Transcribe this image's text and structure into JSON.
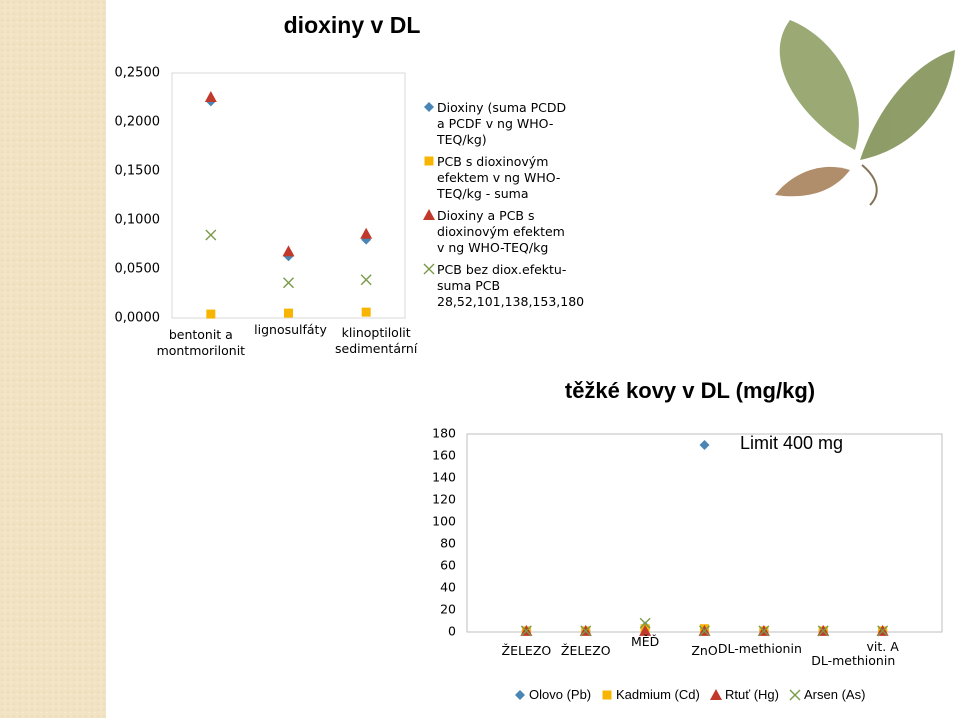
{
  "chart_data": [
    {
      "type": "scatter",
      "title": "dioxiny v DL",
      "categories": [
        "bentonit a montmorilonit",
        "lignosulfáty",
        "klinoptilolit sedimentární"
      ],
      "series": [
        {
          "name": "Dioxiny (suma PCDD a PCDF v ng WHO-TEQ/kg)",
          "color": "#4a86b5",
          "marker": "diamond",
          "values": [
            0.221,
            0.063,
            0.08
          ]
        },
        {
          "name": "PCB s dioxinovým efektem v ng WHO-TEQ/kg - suma",
          "color": "#f7b500",
          "marker": "square",
          "values": [
            0.004,
            0.005,
            0.006
          ]
        },
        {
          "name": "Dioxiny a PCB s dioxinovým efektem v ng WHO-TEQ/kg",
          "color": "#c0392b",
          "marker": "triangle",
          "values": [
            0.2255,
            0.068,
            0.086
          ]
        },
        {
          "name": "PCB bez diox.efektu-suma PCB 28,52,101,138,153,180",
          "color": "#7a9a4a",
          "marker": "x",
          "values": [
            0.0847,
            0.036,
            0.039
          ]
        }
      ],
      "ylim": [
        0,
        0.25
      ],
      "yticks": [
        {
          "value": 0,
          "label": "0,0000"
        },
        {
          "value": 0.05,
          "label": "0,0500"
        },
        {
          "value": 0.1,
          "label": "0,1000"
        },
        {
          "value": 0.15,
          "label": "0,1500"
        },
        {
          "value": 0.2,
          "label": "0,2000"
        },
        {
          "value": 0.25,
          "label": "0,2500"
        }
      ],
      "grid": false,
      "legend": "right"
    },
    {
      "type": "scatter",
      "title": "těžké kovy v DL (mg/kg)",
      "categories": [
        "ŽELEZO",
        "ŽELEZO",
        "MĚĎ",
        "ZnO",
        "DL-methionin",
        "DL-methionin",
        "vit. A"
      ],
      "series": [
        {
          "name": "Olovo (Pb)",
          "color": "#4a86b5",
          "marker": "diamond",
          "values": [
            1,
            1,
            5,
            170,
            1,
            1,
            1
          ]
        },
        {
          "name": "Kadmium (Cd)",
          "color": "#f7b500",
          "marker": "square",
          "values": [
            1,
            1,
            3,
            3,
            1,
            1,
            1
          ]
        },
        {
          "name": "Rtuť (Hg)",
          "color": "#c0392b",
          "marker": "triangle",
          "values": [
            1,
            1,
            1,
            1,
            1,
            1,
            1
          ]
        },
        {
          "name": "Arsen (As)",
          "color": "#7a9a4a",
          "marker": "x",
          "values": [
            1,
            1,
            8,
            1,
            1,
            1,
            1
          ]
        }
      ],
      "ylim": [
        0,
        180
      ],
      "yticks": [
        0,
        20,
        40,
        60,
        80,
        100,
        120,
        140,
        160,
        180
      ],
      "annotation": "Limit 400 mg",
      "grid": false,
      "legend": "bottom"
    }
  ]
}
